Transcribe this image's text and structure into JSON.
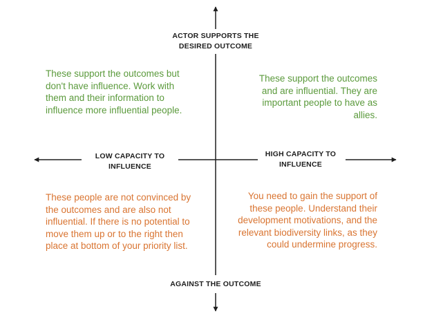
{
  "colors": {
    "axis": "#1e1e1e",
    "support_text": "#5b9a3c",
    "against_text": "#d97431",
    "background": "#ffffff"
  },
  "axes": {
    "top_label": "ACTOR SUPPORTS THE DESIRED OUTCOME",
    "bottom_label": "AGAINST THE OUTCOME",
    "left_label": "LOW CAPACITY TO INFLUENCE",
    "right_label": "HIGH CAPACITY TO INFLUENCE"
  },
  "quadrants": {
    "top_left": "These support the outcomes but don't have influence. Work with them and their information to influence more influential people.",
    "top_right": "These support the outcomes and are influential. They are important people to have as allies.",
    "bottom_left": "These people are not convinced by the outcomes and are also not influential. If there is no potential to move them up or to the right then place at bottom of your priority list.",
    "bottom_right": "You need to gain the support of these people. Understand their development motivations, and the relevant biodiversity links, as they could undermine progress."
  }
}
